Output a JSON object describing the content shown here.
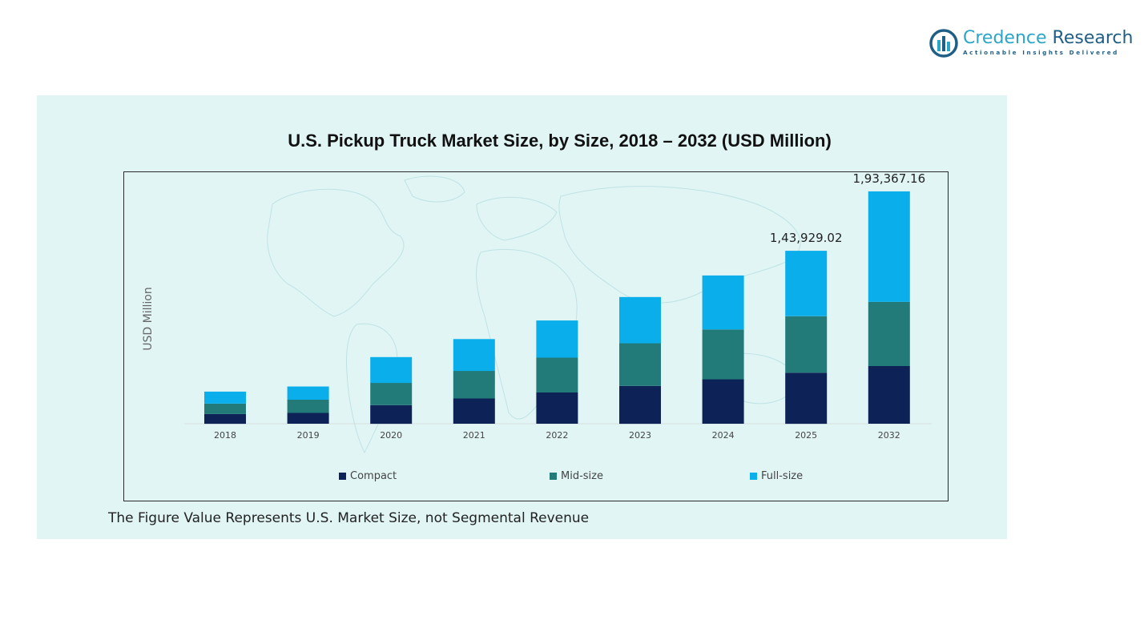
{
  "brand": {
    "name_part1": "Credence",
    "name_part2": "Research",
    "tagline": "Actionable Insights Delivered"
  },
  "footnote": "The Figure Value Represents U.S. Market Size, not Segmental Revenue",
  "colors": {
    "compact": "#0d2257",
    "mid_size": "#237b79",
    "full_size": "#0aaeea",
    "panel_bg": "#e1f5f5"
  },
  "chart_data": {
    "type": "bar",
    "stacked": true,
    "title": "U.S. Pickup Truck Market Size, by Size, 2018 – 2032 (USD Million)",
    "xlabel": "",
    "ylabel": "USD Million",
    "categories": [
      "2018",
      "2019",
      "2020",
      "2021",
      "2022",
      "2023",
      "2024",
      "2025",
      "2032"
    ],
    "series": [
      {
        "name": "Compact",
        "values": [
          8100,
          9000,
          15500,
          21000,
          26000,
          31500,
          37000,
          42500,
          48000
        ]
      },
      {
        "name": "Mid-size",
        "values": [
          8600,
          11000,
          18500,
          23000,
          29000,
          35500,
          41500,
          47000,
          53367.16
        ]
      },
      {
        "name": "Full-size",
        "values": [
          10000,
          11000,
          21500,
          26500,
          30929.02,
          38500,
          44929.02,
          54429.02,
          92000
        ]
      }
    ],
    "data_labels": [
      {
        "category": "2025",
        "text": "1,43,929.02"
      },
      {
        "category": "2032",
        "text": "1,93,367.16"
      }
    ],
    "ylim": [
      0,
      200000
    ],
    "grid": false,
    "legend_position": "bottom"
  }
}
